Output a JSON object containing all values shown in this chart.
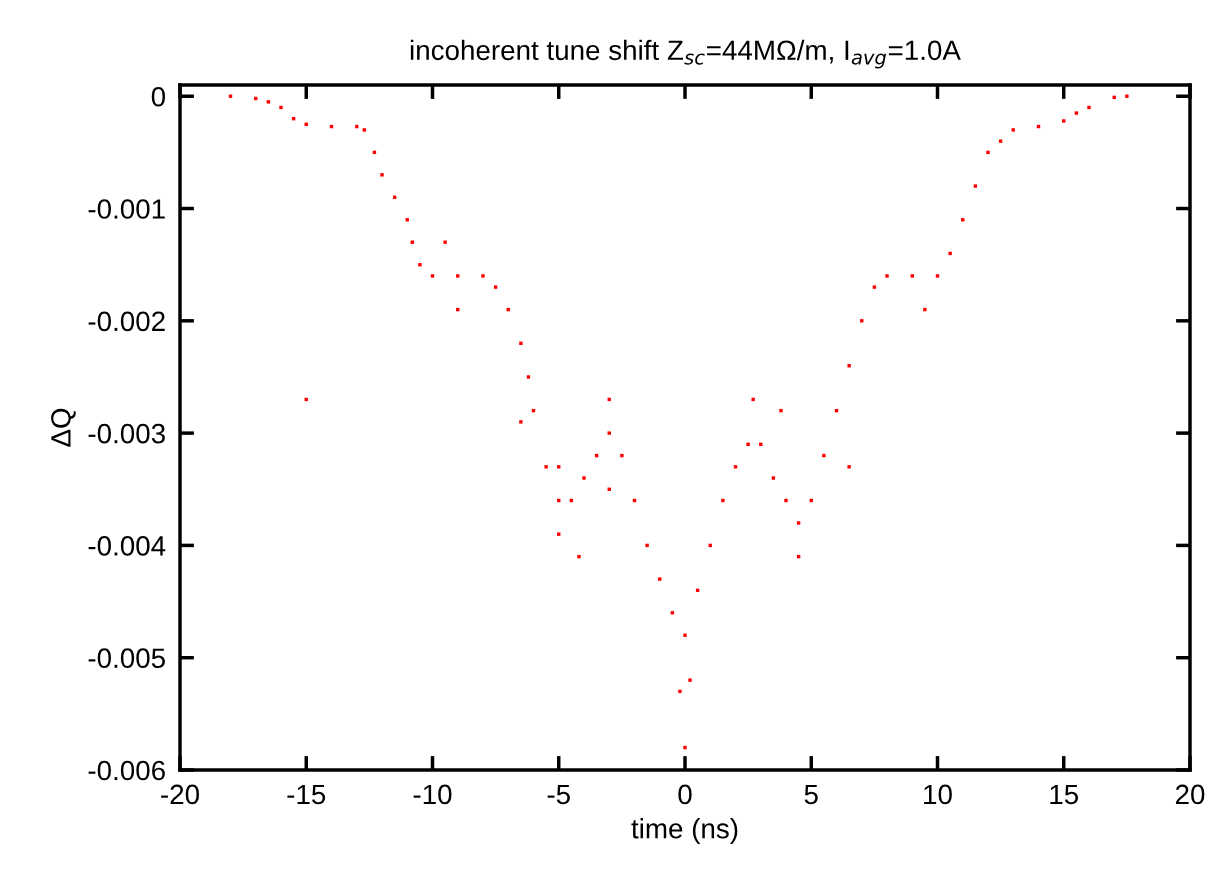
{
  "chart_data": {
    "type": "scatter",
    "title": "incoherent tune shift Z$_{sc}$=44MΩ/m, I$_{avg}$=1.0A",
    "xlabel": "time (ns)",
    "ylabel": "ΔQ",
    "xlim": [
      -20,
      20
    ],
    "ylim": [
      -0.006,
      0.0001
    ],
    "xticks": [
      -20,
      -15,
      -10,
      -5,
      0,
      5,
      10,
      15,
      20
    ],
    "yticks": [
      -0.006,
      -0.005,
      -0.004,
      -0.003,
      -0.002,
      -0.001,
      0
    ],
    "grid": false,
    "legend": false,
    "marker": "square",
    "series": [
      {
        "color": "#ff0000",
        "x": [
          -18,
          -17,
          -16.5,
          -16,
          -15.5,
          -15,
          -14,
          -13,
          -12.7,
          -12.3,
          -12,
          -11.5,
          -11,
          -10.8,
          -10.5,
          -10,
          -9,
          -8,
          -7.5,
          -7,
          -6.5,
          -6.2,
          -6,
          -5.5,
          -5,
          -4.5,
          -4,
          -3.5,
          -3,
          -2.5,
          -2,
          -1.5,
          -1,
          -0.5,
          0,
          0.5,
          1,
          1.5,
          2,
          2.5,
          3,
          3.5,
          4,
          4.5,
          5,
          5.5,
          6,
          6.5,
          7,
          7.5,
          8,
          9,
          10,
          10.5,
          11,
          11.5,
          12,
          12.5,
          13,
          14,
          15,
          15.5,
          16,
          17,
          17.5,
          -5,
          -5,
          -3,
          -3,
          -0.2,
          0,
          0.2,
          -9.5,
          -9,
          9.5,
          4.5,
          2.7,
          -15,
          -4.2,
          3.8,
          -6.5,
          6.5
        ],
        "values": [
          0,
          -2e-05,
          -5e-05,
          -0.0001,
          -0.0002,
          -0.00025,
          -0.00027,
          -0.00027,
          -0.0003,
          -0.0005,
          -0.0007,
          -0.0009,
          -0.0011,
          -0.0013,
          -0.0015,
          -0.0016,
          -0.0016,
          -0.0016,
          -0.0017,
          -0.0019,
          -0.0022,
          -0.0025,
          -0.0028,
          -0.0033,
          -0.0036,
          -0.0036,
          -0.0034,
          -0.0032,
          -0.003,
          -0.0032,
          -0.0036,
          -0.004,
          -0.0043,
          -0.0046,
          -0.0048,
          -0.0044,
          -0.004,
          -0.0036,
          -0.0033,
          -0.0031,
          -0.0031,
          -0.0034,
          -0.0036,
          -0.0038,
          -0.0036,
          -0.0032,
          -0.0028,
          -0.0024,
          -0.002,
          -0.0017,
          -0.0016,
          -0.0016,
          -0.0016,
          -0.0014,
          -0.0011,
          -0.0008,
          -0.0005,
          -0.0004,
          -0.0003,
          -0.00027,
          -0.00022,
          -0.00015,
          -0.0001,
          -1e-05,
          0,
          -0.0039,
          -0.0033,
          -0.0027,
          -0.0035,
          -0.0053,
          -0.0058,
          -0.0052,
          -0.0013,
          -0.0019,
          -0.0019,
          -0.0041,
          -0.0027,
          -0.0027,
          -0.0041,
          -0.0028,
          -0.0029,
          -0.0033
        ]
      }
    ]
  }
}
